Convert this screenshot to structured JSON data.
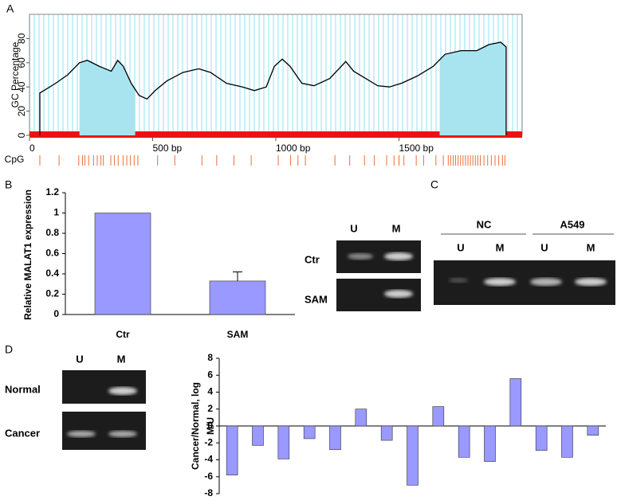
{
  "panels": [
    "A",
    "B",
    "C",
    "D"
  ],
  "chart_data": [
    {
      "type": "line",
      "ylabel": "GC Percentage",
      "xlim": [
        0,
        2000
      ],
      "ylim": [
        0,
        100
      ],
      "xticks": [
        0,
        {
          "value": 500,
          "label": "500 bp"
        },
        {
          "value": 1000,
          "label": "1000 bp"
        },
        {
          "value": 1500,
          "label": "1500 bp"
        }
      ],
      "yticks": [
        0,
        20,
        40,
        60,
        80
      ],
      "series": [
        {
          "color": "#000000",
          "x": [
            42,
            42,
            58,
            106,
            155,
            203,
            235,
            284,
            332,
            358,
            381,
            413,
            445,
            477,
            510,
            558,
            623,
            687,
            735,
            800,
            865,
            913,
            961,
            994,
            1026,
            1058,
            1106,
            1155,
            1219,
            1284,
            1316,
            1365,
            1413,
            1461,
            1510,
            1574,
            1639,
            1687,
            1752,
            1816,
            1865,
            1913,
            1935,
            1935
          ],
          "values": [
            0,
            35,
            37,
            43,
            50,
            60,
            62,
            57,
            53,
            62,
            57,
            43,
            33,
            30,
            37,
            45,
            52,
            55,
            52,
            43,
            40,
            37,
            40,
            57,
            63,
            57,
            43,
            41,
            47,
            61,
            53,
            47,
            41,
            40,
            43,
            49,
            57,
            67,
            70,
            70,
            75,
            77,
            73,
            0
          ]
        }
      ],
      "islands": [
        [
          203,
          429
        ],
        [
          1665,
          1935
        ]
      ],
      "island_color": "#a8e4f0",
      "cpg_label": "CpG",
      "cpg_color": "#e8703a",
      "cpg_sites": [
        42,
        120,
        200,
        215,
        225,
        240,
        260,
        275,
        290,
        300,
        330,
        345,
        360,
        380,
        395,
        410,
        425,
        440,
        520,
        590,
        700,
        760,
        830,
        900,
        1010,
        1060,
        1090,
        1120,
        1240,
        1300,
        1360,
        1400,
        1450,
        1480,
        1500,
        1520,
        1570,
        1600,
        1650,
        1680,
        1700,
        1710,
        1720,
        1730,
        1740,
        1750,
        1760,
        1770,
        1780,
        1790,
        1800,
        1810,
        1820,
        1830,
        1845,
        1860,
        1875,
        1890,
        1905,
        1920,
        1930
      ]
    },
    {
      "type": "bar",
      "ylabel": "Relative MALAT1 expression",
      "categories": [
        "Ctr",
        "SAM"
      ],
      "values": [
        1,
        0.33
      ],
      "errors": [
        0,
        0.09
      ],
      "color": "#9999ff",
      "ylim": [
        0,
        1.2
      ],
      "yticks": [
        0,
        0.2,
        0.4,
        0.6,
        0.8,
        1,
        1.2
      ]
    },
    {
      "type": "bar",
      "ylabel_lines": [
        "Cancer/Normal, log",
        "M/U"
      ],
      "values": [
        -5.8,
        -2.3,
        -3.9,
        -1.5,
        -2.8,
        2.0,
        -1.7,
        -7.0,
        2.3,
        -3.7,
        -4.2,
        5.6,
        -2.9,
        -3.7,
        -1.1
      ],
      "color": "#9999ff",
      "ylim": [
        -8,
        8
      ],
      "yticks": [
        -8,
        -6,
        -4,
        -2,
        0,
        2,
        4,
        6,
        8
      ]
    }
  ],
  "gels": [
    {
      "columns": [
        "U",
        "M"
      ],
      "rows": [
        "Ctr",
        "SAM"
      ]
    },
    {
      "groups": [
        "NC",
        "A549"
      ],
      "columns": [
        "U",
        "M",
        "U",
        "M"
      ]
    },
    {
      "columns": [
        "U",
        "M"
      ],
      "rows": [
        "Normal",
        "Cancer"
      ]
    }
  ]
}
